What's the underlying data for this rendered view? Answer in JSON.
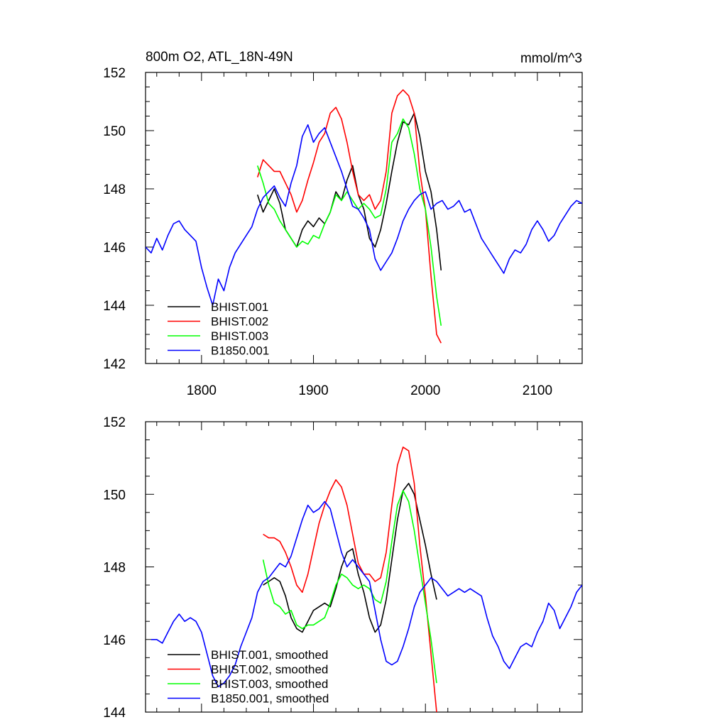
{
  "chart_data": [
    {
      "type": "line",
      "title": "800m O2, ATL_18N-49N",
      "units": "mmol/m^3",
      "xlim": [
        1750,
        2140
      ],
      "ylim": [
        142,
        152
      ],
      "xticks": [
        1800,
        1900,
        2000,
        2100
      ],
      "xtick_labels": [
        "1800",
        "1900",
        "2000",
        "2100"
      ],
      "yticks": [
        142,
        144,
        146,
        148,
        150,
        152
      ],
      "ytick_labels": [
        "142",
        "144",
        "146",
        "148",
        "150",
        "152"
      ],
      "grid": false,
      "legend_position": "bottom-left",
      "series": [
        {
          "name": "BHIST.001",
          "color": "#000000",
          "x": [
            1850,
            1855,
            1860,
            1865,
            1870,
            1875,
            1880,
            1885,
            1890,
            1895,
            1900,
            1905,
            1910,
            1915,
            1920,
            1925,
            1930,
            1935,
            1940,
            1945,
            1950,
            1955,
            1960,
            1965,
            1970,
            1975,
            1980,
            1985,
            1990,
            1995,
            2000,
            2005,
            2010,
            2014
          ],
          "y": [
            147.8,
            147.2,
            147.6,
            148.0,
            147.5,
            146.6,
            146.3,
            146.0,
            146.6,
            146.9,
            146.7,
            147.0,
            146.8,
            147.2,
            147.9,
            147.6,
            148.3,
            148.8,
            147.8,
            147.3,
            146.3,
            146.0,
            146.6,
            147.5,
            148.6,
            149.6,
            150.3,
            150.2,
            150.6,
            149.8,
            148.6,
            147.9,
            146.6,
            145.2
          ]
        },
        {
          "name": "BHIST.002",
          "color": "#ff0000",
          "x": [
            1850,
            1855,
            1860,
            1865,
            1870,
            1875,
            1880,
            1885,
            1890,
            1895,
            1900,
            1905,
            1910,
            1915,
            1920,
            1925,
            1930,
            1935,
            1940,
            1945,
            1950,
            1955,
            1960,
            1965,
            1970,
            1975,
            1980,
            1985,
            1990,
            1995,
            2000,
            2005,
            2010,
            2014
          ],
          "y": [
            148.4,
            149.0,
            148.8,
            148.6,
            148.6,
            148.2,
            147.8,
            147.2,
            147.6,
            148.3,
            148.9,
            149.6,
            149.9,
            150.6,
            150.8,
            150.4,
            149.6,
            148.6,
            147.8,
            147.6,
            147.8,
            147.3,
            147.6,
            148.6,
            150.6,
            151.2,
            151.4,
            151.2,
            150.6,
            148.6,
            147.3,
            145.0,
            143.0,
            142.7
          ]
        },
        {
          "name": "BHIST.003",
          "color": "#00ff00",
          "x": [
            1850,
            1855,
            1860,
            1865,
            1870,
            1875,
            1880,
            1885,
            1890,
            1895,
            1900,
            1905,
            1910,
            1915,
            1920,
            1925,
            1930,
            1935,
            1940,
            1945,
            1950,
            1955,
            1960,
            1965,
            1970,
            1975,
            1980,
            1985,
            1990,
            1995,
            2000,
            2005,
            2010,
            2014
          ],
          "y": [
            148.8,
            148.2,
            147.5,
            147.3,
            146.9,
            146.6,
            146.3,
            146.0,
            146.2,
            146.1,
            146.4,
            146.3,
            146.8,
            147.2,
            147.8,
            147.6,
            147.9,
            147.6,
            147.3,
            147.5,
            147.3,
            147.0,
            147.1,
            148.0,
            149.6,
            149.9,
            150.4,
            150.1,
            149.2,
            148.0,
            147.3,
            146.0,
            144.3,
            143.3
          ]
        },
        {
          "name": "B1850.001",
          "color": "#0000ff",
          "x": [
            1750,
            1755,
            1760,
            1765,
            1770,
            1775,
            1780,
            1785,
            1790,
            1795,
            1800,
            1805,
            1810,
            1815,
            1820,
            1825,
            1830,
            1835,
            1840,
            1845,
            1850,
            1855,
            1860,
            1865,
            1870,
            1875,
            1880,
            1885,
            1890,
            1895,
            1900,
            1905,
            1910,
            1915,
            1920,
            1925,
            1930,
            1935,
            1940,
            1945,
            1950,
            1955,
            1960,
            1965,
            1970,
            1975,
            1980,
            1985,
            1990,
            1995,
            2000,
            2005,
            2010,
            2015,
            2020,
            2025,
            2030,
            2035,
            2040,
            2045,
            2050,
            2055,
            2060,
            2065,
            2070,
            2075,
            2080,
            2085,
            2090,
            2095,
            2100,
            2105,
            2110,
            2115,
            2120,
            2125,
            2130,
            2135,
            2140
          ],
          "y": [
            146.0,
            145.8,
            146.3,
            145.9,
            146.4,
            146.8,
            146.9,
            146.6,
            146.4,
            146.2,
            145.3,
            144.6,
            144.0,
            144.9,
            144.5,
            145.3,
            145.8,
            146.1,
            146.4,
            146.7,
            147.3,
            147.7,
            147.9,
            148.1,
            147.7,
            147.4,
            148.2,
            148.8,
            149.8,
            150.2,
            149.6,
            149.9,
            150.1,
            149.6,
            149.1,
            148.6,
            148.0,
            147.4,
            147.3,
            147.0,
            146.6,
            145.6,
            145.2,
            145.5,
            145.8,
            146.3,
            146.9,
            147.3,
            147.6,
            147.8,
            147.9,
            147.3,
            147.5,
            147.6,
            147.3,
            147.4,
            147.6,
            147.2,
            147.3,
            146.8,
            146.3,
            146.0,
            145.7,
            145.4,
            145.1,
            145.6,
            145.9,
            145.8,
            146.1,
            146.6,
            146.9,
            146.6,
            146.2,
            146.4,
            146.8,
            147.1,
            147.4,
            147.6,
            147.5
          ]
        }
      ]
    },
    {
      "type": "line",
      "title": "",
      "xlim": [
        1750,
        2140
      ],
      "ylim": [
        144,
        152
      ],
      "xticks": [
        1800,
        1900,
        2000,
        2100
      ],
      "yticks": [
        144,
        146,
        148,
        150,
        152
      ],
      "ytick_labels": [
        "144",
        "146",
        "148",
        "150",
        "152"
      ],
      "grid": false,
      "legend_position": "bottom-left",
      "series": [
        {
          "name": "BHIST.001, smoothed",
          "color": "#000000",
          "x": [
            1855,
            1860,
            1865,
            1870,
            1875,
            1880,
            1885,
            1890,
            1895,
            1900,
            1905,
            1910,
            1915,
            1920,
            1925,
            1930,
            1935,
            1940,
            1945,
            1950,
            1955,
            1960,
            1965,
            1970,
            1975,
            1980,
            1985,
            1990,
            1995,
            2000,
            2005,
            2010
          ],
          "y": [
            147.5,
            147.6,
            147.7,
            147.6,
            147.2,
            146.6,
            146.3,
            146.2,
            146.5,
            146.8,
            146.9,
            147.0,
            146.9,
            147.4,
            148.0,
            148.4,
            148.5,
            147.8,
            147.3,
            146.6,
            146.2,
            146.4,
            147.1,
            148.2,
            149.3,
            150.1,
            150.3,
            150.0,
            149.3,
            148.6,
            147.8,
            147.1
          ]
        },
        {
          "name": "BHIST.002, smoothed",
          "color": "#ff0000",
          "x": [
            1855,
            1860,
            1865,
            1870,
            1875,
            1880,
            1885,
            1890,
            1895,
            1900,
            1905,
            1910,
            1915,
            1920,
            1925,
            1930,
            1935,
            1940,
            1945,
            1950,
            1955,
            1960,
            1965,
            1970,
            1975,
            1980,
            1985,
            1990,
            1995,
            2000,
            2005,
            2010
          ],
          "y": [
            148.9,
            148.8,
            148.8,
            148.7,
            148.4,
            148.0,
            147.5,
            147.3,
            147.8,
            148.5,
            149.2,
            149.7,
            150.1,
            150.4,
            150.2,
            149.7,
            148.9,
            148.1,
            147.8,
            147.8,
            147.6,
            147.7,
            148.4,
            149.7,
            150.8,
            151.3,
            151.2,
            150.3,
            148.6,
            147.2,
            145.6,
            144.0
          ]
        },
        {
          "name": "BHIST.003, smoothed",
          "color": "#00ff00",
          "x": [
            1855,
            1860,
            1865,
            1870,
            1875,
            1880,
            1885,
            1890,
            1895,
            1900,
            1905,
            1910,
            1915,
            1920,
            1925,
            1930,
            1935,
            1940,
            1945,
            1950,
            1955,
            1960,
            1965,
            1970,
            1975,
            1980,
            1985,
            1990,
            1995,
            2000,
            2005,
            2010
          ],
          "y": [
            148.2,
            147.5,
            147.0,
            146.9,
            146.7,
            146.8,
            146.4,
            146.3,
            146.4,
            146.4,
            146.5,
            146.6,
            147.0,
            147.5,
            147.8,
            147.7,
            147.5,
            147.4,
            147.5,
            147.4,
            147.1,
            147.0,
            147.6,
            148.7,
            149.7,
            150.1,
            149.8,
            149.0,
            148.0,
            147.0,
            146.0,
            144.8
          ]
        },
        {
          "name": "B1850.001, smoothed",
          "color": "#0000ff",
          "x": [
            1755,
            1760,
            1765,
            1770,
            1775,
            1780,
            1785,
            1790,
            1795,
            1800,
            1805,
            1810,
            1815,
            1820,
            1825,
            1830,
            1835,
            1840,
            1845,
            1850,
            1855,
            1860,
            1865,
            1870,
            1875,
            1880,
            1885,
            1890,
            1895,
            1900,
            1905,
            1910,
            1915,
            1920,
            1925,
            1930,
            1935,
            1940,
            1945,
            1950,
            1955,
            1960,
            1965,
            1970,
            1975,
            1980,
            1985,
            1990,
            1995,
            2000,
            2005,
            2010,
            2015,
            2020,
            2025,
            2030,
            2035,
            2040,
            2045,
            2050,
            2055,
            2060,
            2065,
            2070,
            2075,
            2080,
            2085,
            2090,
            2095,
            2100,
            2105,
            2110,
            2115,
            2120,
            2125,
            2130,
            2135,
            2140
          ],
          "y": [
            146.0,
            146.0,
            145.9,
            146.2,
            146.5,
            146.7,
            146.5,
            146.6,
            146.5,
            146.2,
            145.6,
            145.0,
            144.7,
            144.8,
            145.0,
            145.3,
            145.8,
            146.2,
            146.6,
            147.3,
            147.6,
            147.7,
            147.9,
            148.1,
            148.0,
            148.3,
            148.8,
            149.3,
            149.7,
            149.5,
            149.6,
            149.8,
            149.6,
            149.0,
            148.4,
            148.0,
            148.2,
            148.0,
            147.8,
            147.6,
            146.8,
            146.0,
            145.4,
            145.3,
            145.4,
            145.8,
            146.3,
            146.9,
            147.3,
            147.5,
            147.7,
            147.6,
            147.4,
            147.2,
            147.3,
            147.4,
            147.3,
            147.4,
            147.3,
            147.2,
            146.6,
            146.1,
            145.8,
            145.4,
            145.2,
            145.5,
            145.8,
            145.9,
            145.8,
            146.2,
            146.5,
            147.0,
            146.8,
            146.3,
            146.6,
            146.9,
            147.3,
            147.5
          ]
        }
      ]
    }
  ]
}
